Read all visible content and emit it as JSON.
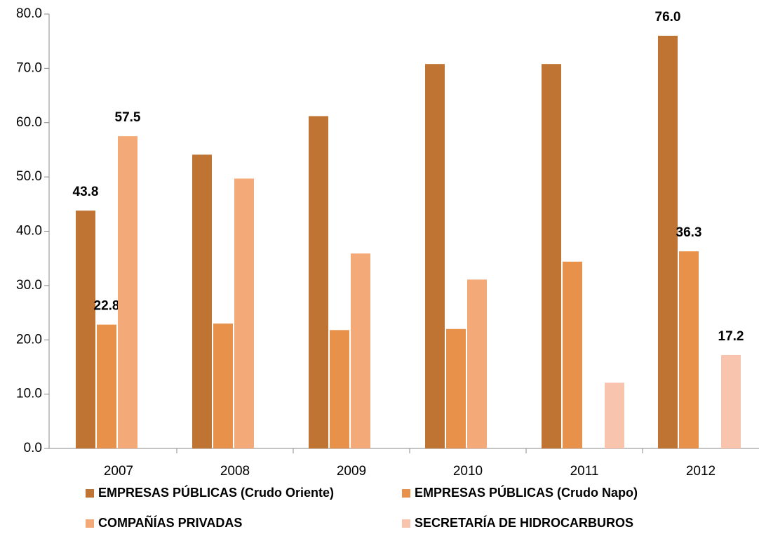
{
  "chart_data": {
    "type": "bar",
    "categories": [
      "2007",
      "2008",
      "2009",
      "2010",
      "2011",
      "2012"
    ],
    "series": [
      {
        "name": "EMPRESAS PÚBLICAS (Crudo Oriente)",
        "color": "#c07434",
        "values": [
          43.8,
          54.1,
          61.2,
          70.8,
          70.8,
          76.0
        ],
        "value_labels": [
          "43.8",
          null,
          null,
          null,
          null,
          "76.0"
        ]
      },
      {
        "name": "EMPRESAS PÚBLICAS (Crudo Napo)",
        "color": "#e8914a",
        "values": [
          22.8,
          23.0,
          21.8,
          22.0,
          34.4,
          36.3
        ],
        "value_labels": [
          "22.8",
          null,
          null,
          null,
          null,
          "36.3"
        ]
      },
      {
        "name": "COMPAÑÍAS PRIVADAS",
        "color": "#f4aa78",
        "values": [
          57.5,
          49.7,
          35.9,
          31.1,
          null,
          null
        ],
        "value_labels": [
          "57.5",
          null,
          null,
          null,
          null,
          null
        ]
      },
      {
        "name": "SECRETARÍA DE HIDROCARBUROS",
        "color": "#f8c4ad",
        "values": [
          null,
          null,
          null,
          null,
          12.1,
          17.2
        ],
        "value_labels": [
          null,
          null,
          null,
          null,
          null,
          "17.2"
        ]
      }
    ],
    "ylim": [
      0,
      80
    ],
    "yticks": [
      {
        "value": 0,
        "label": "0.0"
      },
      {
        "value": 10,
        "label": "10.0"
      },
      {
        "value": 20,
        "label": "20.0"
      },
      {
        "value": 30,
        "label": "30.0"
      },
      {
        "value": 40,
        "label": "40.0"
      },
      {
        "value": 50,
        "label": "50.0"
      },
      {
        "value": 60,
        "label": "60.0"
      },
      {
        "value": 70,
        "label": "70.0"
      },
      {
        "value": 80,
        "label": "80.0"
      }
    ],
    "grid": false
  }
}
